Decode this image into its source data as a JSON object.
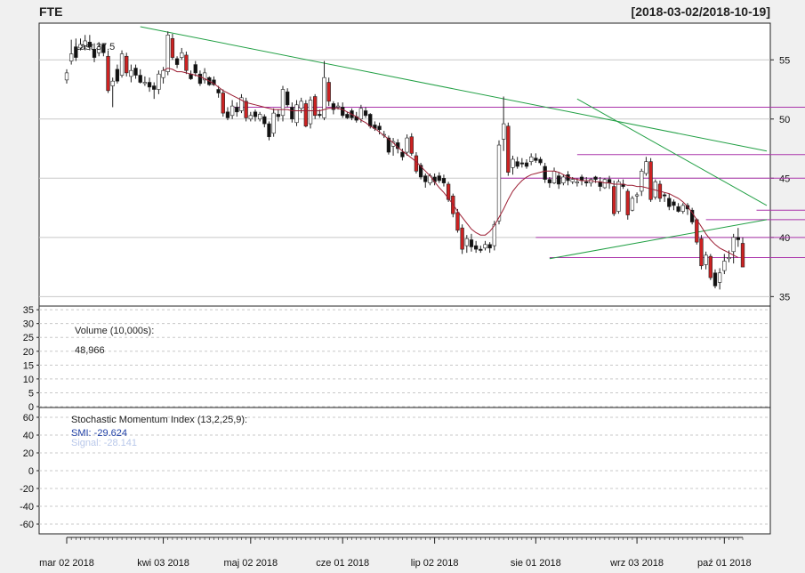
{
  "title": "FTE",
  "date_range": "[2018-03-02/2018-10-19]",
  "colors": {
    "background": "#f0f0f0",
    "panel": "#ffffff",
    "down_candle": "#111111",
    "up_candle": "#ffffff",
    "red_candle": "#cc2222",
    "trend_line": "#22a045",
    "level_line": "#aa33aa",
    "moving_average": "#9c1e33",
    "smi_line": "#1f3fa6",
    "signal_line": "#b9c8ea"
  },
  "chart_data": [
    {
      "type": "candlestick",
      "name": "price",
      "legend_label": "Last 37.5",
      "y_ticks": [
        35,
        40,
        45,
        50,
        55
      ],
      "ylim": [
        34.5,
        57.8
      ],
      "close": [
        53.9,
        55.5,
        55.2,
        56.3,
        56.6,
        56.1,
        55.2,
        56.1,
        55.6,
        52.4,
        53.2,
        53.2,
        55.5,
        53.9,
        54.1,
        53.7,
        53.1,
        53.1,
        52.7,
        52.5,
        53.8,
        54.1,
        57.1,
        55.2,
        54.6,
        55.6,
        54.1,
        53.4,
        53.9,
        53.0,
        53.9,
        52.9,
        52.9,
        52.2,
        50.5,
        50.1,
        51.1,
        50.6,
        51.8,
        50.1,
        50.3,
        50.2,
        50.4,
        49.6,
        48.5,
        50.5,
        50.2,
        52.5,
        51.2,
        50.0,
        51.2,
        51.5,
        49.4,
        51.6,
        50.3,
        50.3,
        53.5,
        51.5,
        50.8,
        51.1,
        50.3,
        50.1,
        50.1,
        49.9,
        50.9,
        50.3,
        49.4,
        49.2,
        49.1,
        48.7,
        47.2,
        48.1,
        47.5,
        46.8,
        48.4,
        47.1,
        45.6,
        45.1,
        44.7,
        45.2,
        44.7,
        44.8,
        44.6,
        43.2,
        42.0,
        40.6,
        39.0,
        39.9,
        39.2,
        39.0,
        38.9,
        39.4,
        39.1,
        41.1,
        47.8,
        49.6,
        45.5,
        46.6,
        46.0,
        46.2,
        46.0,
        46.8,
        46.5,
        46.3,
        44.9,
        44.6,
        45.6,
        44.5,
        45.1,
        44.8,
        44.9,
        44.7,
        44.8,
        44.6,
        44.9,
        44.9,
        44.3,
        44.9,
        44.6,
        42.0,
        44.7,
        44.3,
        41.9,
        43.3,
        43.6,
        45.6,
        46.4,
        43.2,
        44.7,
        43.3,
        43.5,
        42.6,
        42.7,
        42.2,
        42.7,
        42.4,
        41.3,
        39.6,
        37.6,
        38.5,
        36.6,
        35.9,
        37.0,
        38.0,
        38.3,
        40.0,
        39.8,
        37.5
      ],
      "open": [
        53.3,
        54.9,
        56.1,
        56.0,
        56.2,
        56.5,
        55.9,
        55.6,
        56.3,
        55.3,
        52.8,
        54.2,
        53.7,
        55.3,
        53.6,
        54.3,
        53.7,
        53.0,
        53.1,
        52.8,
        52.5,
        53.5,
        54.0,
        56.8,
        55.1,
        55.2,
        55.4,
        53.8,
        54.6,
        53.8,
        53.3,
        53.5,
        53.3,
        52.5,
        52.2,
        50.6,
        50.3,
        51.0,
        50.7,
        51.5,
        50.0,
        50.6,
        50.0,
        50.2,
        49.6,
        48.8,
        50.4,
        50.3,
        52.3,
        51.0,
        49.7,
        50.9,
        51.3,
        49.6,
        51.9,
        50.4,
        50.1,
        53.1,
        51.3,
        51.0,
        51.0,
        50.4,
        50.7,
        50.2,
        50.0,
        50.7,
        50.4,
        49.5,
        49.4,
        48.7,
        48.4,
        47.7,
        48.0,
        47.2,
        47.2,
        48.5,
        46.9,
        46.1,
        45.2,
        44.6,
        45.1,
        45.2,
        45.0,
        44.5,
        43.5,
        42.1,
        40.8,
        39.3,
        39.8,
        39.3,
        39.0,
        39.1,
        39.4,
        39.3,
        41.4,
        48.3,
        49.4,
        45.9,
        46.4,
        46.3,
        46.3,
        46.4,
        46.7,
        46.6,
        46.0,
        44.9,
        44.6,
        45.2,
        44.6,
        45.3,
        44.7,
        44.6,
        45.1,
        44.7,
        44.6,
        45.1,
        44.7,
        44.2,
        44.9,
        44.3,
        42.2,
        44.5,
        43.9,
        42.3,
        43.5,
        43.9,
        45.4,
        46.4,
        43.4,
        44.5,
        43.6,
        43.3,
        43.0,
        42.6,
        42.2,
        42.7,
        42.3,
        41.5,
        39.9,
        37.7,
        38.4,
        37.0,
        36.2,
        37.2,
        38.2,
        38.8,
        40.0,
        39.5
      ],
      "high": [
        54.2,
        56.7,
        56.8,
        56.8,
        57.1,
        57.1,
        56.4,
        56.5,
        56.4,
        55.8,
        53.5,
        54.6,
        55.8,
        55.6,
        54.6,
        54.6,
        54.2,
        53.6,
        53.5,
        53.1,
        54.1,
        54.4,
        57.4,
        57.2,
        55.3,
        56.0,
        55.7,
        54.1,
        54.9,
        54.1,
        54.3,
        53.6,
        53.6,
        52.8,
        52.5,
        51.0,
        51.6,
        51.4,
        52.1,
        51.8,
        50.6,
        50.8,
        50.6,
        50.4,
        49.8,
        50.9,
        50.8,
        52.8,
        52.6,
        51.4,
        51.6,
        51.8,
        51.6,
        51.9,
        52.1,
        50.8,
        54.9,
        53.5,
        51.5,
        51.4,
        51.4,
        50.6,
        50.9,
        50.6,
        51.2,
        51.0,
        50.5,
        49.8,
        49.7,
        49.0,
        48.6,
        48.4,
        48.3,
        47.5,
        48.7,
        48.8,
        47.2,
        46.3,
        45.4,
        45.4,
        45.4,
        45.5,
        45.3,
        44.7,
        43.7,
        42.4,
        41.1,
        40.2,
        40.3,
        39.7,
        39.3,
        39.7,
        39.6,
        41.4,
        48.2,
        51.9,
        49.7,
        46.9,
        46.8,
        46.7,
        46.6,
        47.1,
        47.1,
        46.8,
        46.3,
        45.1,
        45.9,
        45.5,
        45.3,
        45.6,
        45.1,
        45.0,
        45.3,
        45.1,
        45.0,
        45.2,
        45.1,
        45.0,
        45.2,
        44.8,
        44.9,
        44.9,
        44.1,
        43.5,
        43.8,
        45.8,
        46.8,
        46.7,
        44.9,
        44.8,
        43.8,
        43.7,
        43.2,
        42.9,
        42.9,
        42.9,
        42.5,
        41.6,
        40.2,
        38.8,
        38.6,
        37.3,
        37.4,
        38.6,
        38.9,
        40.3,
        40.8,
        40.0
      ],
      "low": [
        53.0,
        54.6,
        54.9,
        55.8,
        55.8,
        55.8,
        54.8,
        55.3,
        55.3,
        52.2,
        51.0,
        53.0,
        53.5,
        53.6,
        53.1,
        53.4,
        53.0,
        52.8,
        52.3,
        51.7,
        52.1,
        53.0,
        53.7,
        55.0,
        54.3,
        55.0,
        53.8,
        53.3,
        53.6,
        52.8,
        53.0,
        52.8,
        52.8,
        51.8,
        50.2,
        49.9,
        50.0,
        50.2,
        50.5,
        49.8,
        49.8,
        49.8,
        49.8,
        49.3,
        48.2,
        48.5,
        49.8,
        49.8,
        51.0,
        49.7,
        49.4,
        50.5,
        49.3,
        49.2,
        50.0,
        50.1,
        49.9,
        51.1,
        50.4,
        50.8,
        50.1,
        50.0,
        49.9,
        49.7,
        49.7,
        50.1,
        49.2,
        49.0,
        48.7,
        48.4,
        47.0,
        46.9,
        47.1,
        46.5,
        46.9,
        46.9,
        45.4,
        44.9,
        44.2,
        44.4,
        44.4,
        44.6,
        44.3,
        43.0,
        41.7,
        40.4,
        38.6,
        38.7,
        38.8,
        38.7,
        38.7,
        38.9,
        38.7,
        38.9,
        41.1,
        47.3,
        45.2,
        45.3,
        45.8,
        45.9,
        45.8,
        46.1,
        46.3,
        46.1,
        44.6,
        44.2,
        44.5,
        44.1,
        44.4,
        44.4,
        44.5,
        44.3,
        44.4,
        44.3,
        44.3,
        44.6,
        43.9,
        44.1,
        44.1,
        41.8,
        42.0,
        44.1,
        41.5,
        42.2,
        42.9,
        43.5,
        45.2,
        43.0,
        43.2,
        43.0,
        43.0,
        42.3,
        42.3,
        42.1,
        42.0,
        41.9,
        41.1,
        39.4,
        37.3,
        37.3,
        36.4,
        35.7,
        35.6,
        36.9,
        37.9,
        37.8,
        39.2,
        37.5
      ],
      "moving_average": [
        null,
        null,
        null,
        null,
        null,
        null,
        null,
        null,
        null,
        null,
        null,
        null,
        null,
        null,
        null,
        null,
        null,
        null,
        null,
        null,
        null,
        54.1,
        54.3,
        54.2,
        54.0,
        54.0,
        53.9,
        53.8,
        53.7,
        53.6,
        53.4,
        53.2,
        53.0,
        52.7,
        52.4,
        52.2,
        52.0,
        51.8,
        51.6,
        51.4,
        51.3,
        51.2,
        51.1,
        51.0,
        50.9,
        50.8,
        50.8,
        50.8,
        50.8,
        50.7,
        50.7,
        50.7,
        50.7,
        50.7,
        50.7,
        50.7,
        50.8,
        50.9,
        50.9,
        50.9,
        50.8,
        50.6,
        50.4,
        50.2,
        49.9,
        49.7,
        49.4,
        49.2,
        48.9,
        48.6,
        48.3,
        48.0,
        47.6,
        47.3,
        47.0,
        46.7,
        46.4,
        46.0,
        45.6,
        45.2,
        44.7,
        44.2,
        43.8,
        43.3,
        42.8,
        42.2,
        41.7,
        41.2,
        40.7,
        40.4,
        40.2,
        40.2,
        40.5,
        41.0,
        41.7,
        42.4,
        43.2,
        43.9,
        44.4,
        44.8,
        45.1,
        45.3,
        45.4,
        45.5,
        45.6,
        45.6,
        45.6,
        45.5,
        45.3,
        45.1,
        45.0,
        44.9,
        44.8,
        44.8,
        44.8,
        44.7,
        44.7,
        44.6,
        44.6,
        44.5,
        44.5,
        44.5,
        44.4,
        44.4,
        44.3,
        44.3,
        44.2,
        44.1,
        44.0,
        43.9,
        43.8,
        43.7,
        43.5,
        43.3,
        43.0,
        42.6,
        42.1,
        41.5,
        40.9,
        40.3,
        39.8,
        39.4,
        39.1,
        38.9,
        38.7,
        38.5,
        38.3
      ],
      "trend_lines": [
        {
          "start": [
            16,
            57.8
          ],
          "end": [
            186,
            47.3
          ]
        },
        {
          "start": [
            111,
            51.7
          ],
          "end": [
            186,
            42.7
          ]
        },
        {
          "start": [
            105,
            38.2
          ],
          "end": [
            186,
            41.5
          ]
        }
      ],
      "horizontal_levels": [
        {
          "value": 51.0,
          "from": 36,
          "to": 186
        },
        {
          "value": 47.0,
          "from": 111,
          "to": 186
        },
        {
          "value": 45.0,
          "from": 94,
          "to": 186
        },
        {
          "value": 42.3,
          "from": 150,
          "to": 186
        },
        {
          "value": 41.5,
          "from": 139,
          "to": 186
        },
        {
          "value": 40.0,
          "from": 102,
          "to": 186
        },
        {
          "value": 38.3,
          "from": 105,
          "to": 186
        }
      ]
    },
    {
      "type": "bar",
      "name": "volume",
      "legend_label": "Volume (10,000s):",
      "legend_value": "48,966",
      "y_ticks": [
        0,
        5,
        10,
        15,
        20,
        25,
        30,
        35
      ],
      "ylim": [
        0,
        36
      ],
      "values": [
        0.0,
        0.0,
        0.0,
        0.0,
        0.0,
        0.0,
        0.0,
        0.0,
        0.0,
        0.0,
        0.0,
        0.0,
        0.0,
        0.0,
        0.0,
        0.0,
        0.0,
        0.0,
        0.0,
        0.0,
        0.0,
        0.0,
        0.0,
        0.0,
        0.0,
        0.0,
        0.0,
        0.0,
        0.0,
        0.0,
        0.0,
        0.0,
        0.0,
        0.0,
        0.0,
        0.0,
        0.0,
        0.0,
        0.0,
        0.0,
        0.0,
        0.0,
        0.0,
        0.0,
        0.0,
        0.0,
        0.0,
        0.0,
        0.0,
        0.0,
        0.0,
        0.0,
        0.0,
        0.0,
        0.0,
        0.0,
        0.0,
        0.0,
        0.0,
        0.0,
        0.0,
        0.0,
        0.0,
        0.0,
        0.0,
        0.0,
        0.0,
        0.0,
        0.0,
        0.0,
        0.0,
        0.0,
        0.0,
        0.0,
        0.0,
        0.0,
        0.0,
        0.0,
        0.0,
        0.0,
        0.0,
        0.0,
        0.0,
        0.0,
        0.0,
        0.0,
        0.0,
        0.0,
        0.0,
        0.0,
        0.0,
        0.0,
        0.0,
        0.0,
        0.0,
        0.0,
        0.0,
        0.0,
        0.0,
        0.0,
        0.0,
        0.0,
        0.0,
        0.0,
        0.0,
        0.0,
        0.0,
        0.0,
        0.0,
        0.0,
        0.0,
        0.0,
        0.0,
        0.0,
        0.0,
        0.0,
        0.0,
        0.0,
        0.0,
        0.0,
        0.0,
        0.0,
        0.0,
        0.0,
        0.0,
        0.0,
        0.0,
        0.0,
        0.0,
        0.0,
        0.0,
        0.0,
        0.0,
        0.0,
        0.0,
        0.0,
        0.0,
        0.0,
        0.0,
        0.0,
        0.0,
        0.0,
        0.0,
        0.0,
        0.0,
        0.0,
        0.0,
        0.0,
        0.0,
        0.0,
        0.0,
        0.0,
        0.0
      ]
    },
    {
      "type": "line",
      "name": "smi",
      "legend_label": "Stochastic Momentum Index (13,2,25,9):",
      "smi_label": "SMI: -29.624",
      "signal_label": "Signal: -28.141",
      "y_ticks": [
        -60,
        -40,
        -20,
        0,
        20,
        40,
        60
      ],
      "ylim": [
        -70,
        70
      ],
      "smi": [],
      "signal": []
    }
  ],
  "x_axis": {
    "labels": [
      {
        "label": "mar 02 2018",
        "index": 0
      },
      {
        "label": "kwi 03 2018",
        "index": 21
      },
      {
        "label": "maj 02 2018",
        "index": 40
      },
      {
        "label": "cze 01 2018",
        "index": 60
      },
      {
        "label": "lip 02 2018",
        "index": 80
      },
      {
        "label": "sie 01 2018",
        "index": 102
      },
      {
        "label": "wrz 03 2018",
        "index": 124
      },
      {
        "label": "paź 01 2018",
        "index": 143
      }
    ]
  }
}
